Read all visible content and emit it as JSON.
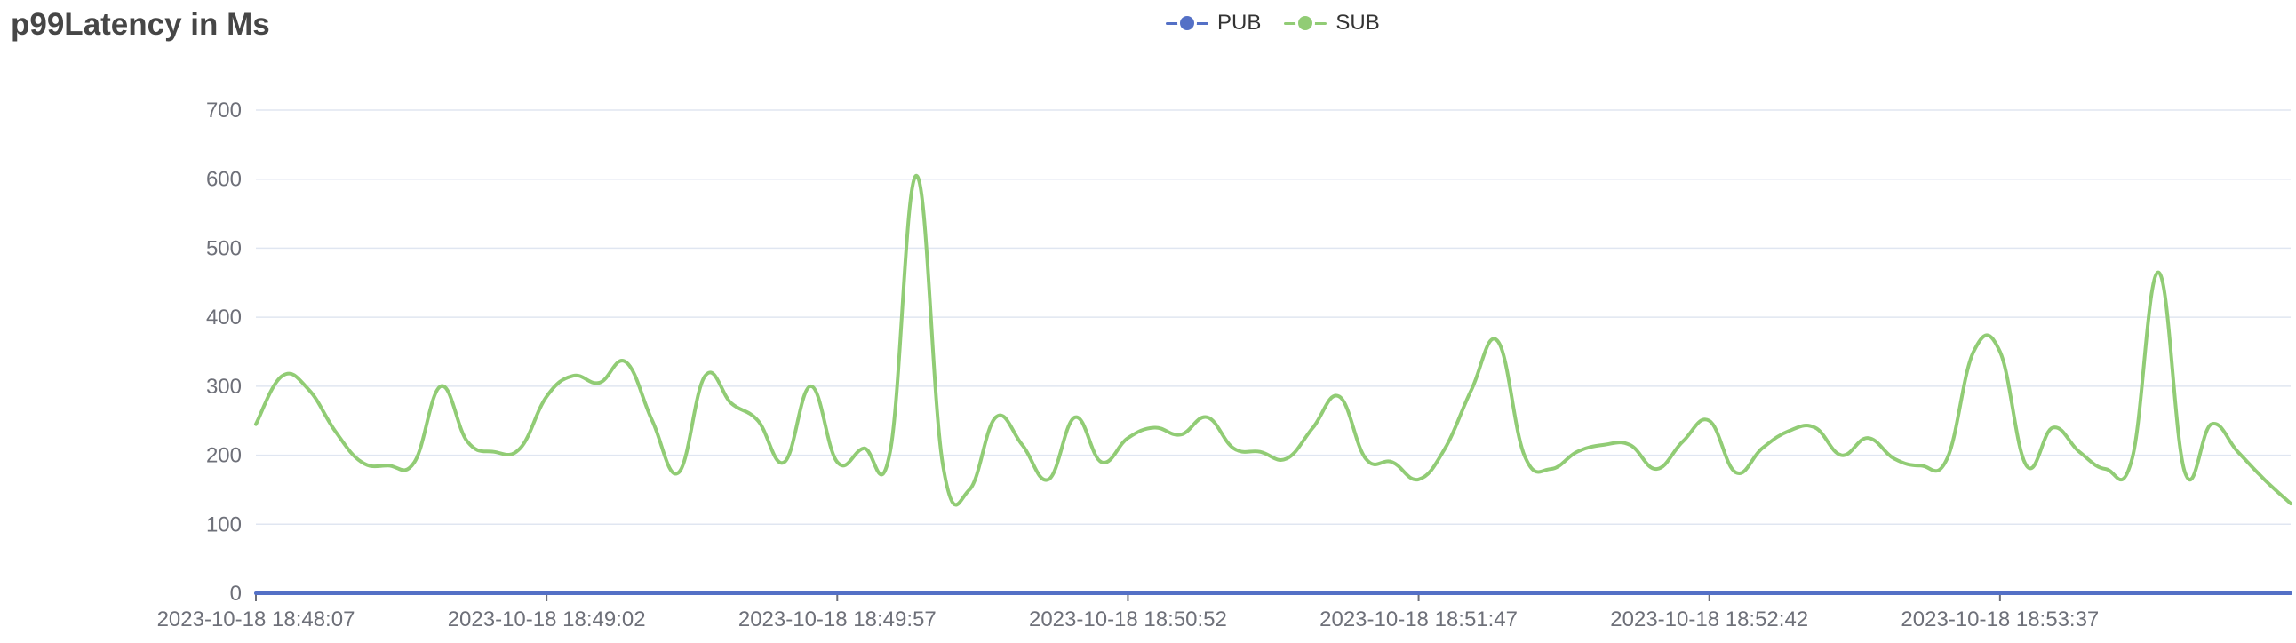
{
  "title": "p99Latency in Ms",
  "legend": [
    {
      "name": "PUB",
      "color": "#5470c6"
    },
    {
      "name": "SUB",
      "color": "#91cc75"
    }
  ],
  "chart_data": {
    "type": "line",
    "title": "p99Latency in Ms",
    "xlabel": "",
    "ylabel": "",
    "ylim": [
      0,
      700
    ],
    "yticks": [
      0,
      100,
      200,
      300,
      400,
      500,
      600,
      700
    ],
    "xtick_labels": [
      "2023-10-18 18:48:07",
      "2023-10-18 18:49:02",
      "2023-10-18 18:49:57",
      "2023-10-18 18:50:52",
      "2023-10-18 18:51:47",
      "2023-10-18 18:52:42",
      "2023-10-18 18:53:37"
    ],
    "x_interval_seconds": 5,
    "grid": true,
    "legend_position": "top-center",
    "series": [
      {
        "name": "PUB",
        "color": "#5470c6",
        "values": [
          0,
          0,
          0,
          0,
          0,
          0,
          0,
          0,
          0,
          0,
          0,
          0,
          0,
          0,
          0,
          0,
          0,
          0,
          0,
          0,
          0,
          0,
          0,
          0,
          0,
          0,
          0,
          0,
          0,
          0,
          0,
          0,
          0,
          0,
          0,
          0,
          0,
          0,
          0,
          0,
          0,
          0,
          0,
          0,
          0,
          0,
          0,
          0,
          0,
          0,
          0,
          0,
          0,
          0,
          0,
          0,
          0,
          0,
          0,
          0,
          0,
          0,
          0,
          0,
          0,
          0,
          0,
          0,
          0,
          0,
          0,
          0,
          0,
          0,
          0,
          0,
          0,
          0
        ]
      },
      {
        "name": "SUB",
        "color": "#91cc75",
        "values": [
          245,
          315,
          295,
          235,
          190,
          185,
          190,
          300,
          220,
          205,
          210,
          285,
          315,
          305,
          335,
          250,
          175,
          315,
          275,
          250,
          190,
          300,
          190,
          210,
          205,
          605,
          185,
          150,
          255,
          215,
          165,
          255,
          190,
          225,
          240,
          230,
          255,
          210,
          205,
          195,
          240,
          285,
          195,
          190,
          165,
          210,
          295,
          365,
          200,
          180,
          205,
          215,
          215,
          180,
          220,
          250,
          175,
          210,
          235,
          240,
          200,
          225,
          195,
          185,
          195,
          350,
          350,
          185,
          240,
          205,
          180,
          195,
          465,
          175,
          245,
          205,
          165,
          130
        ]
      }
    ]
  }
}
